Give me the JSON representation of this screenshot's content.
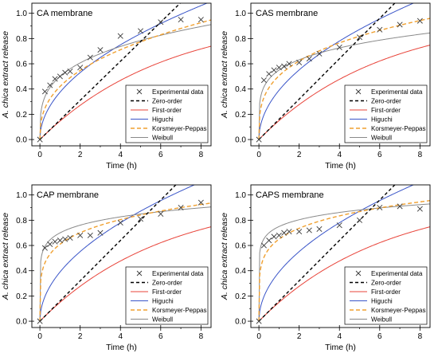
{
  "figure": {
    "shared_xlabel": "Time (h)",
    "shared_ylabel": "A. chica extract release"
  },
  "legend_labels": {
    "experimental": "Experimental data",
    "zero": "Zero-order",
    "first": "First-order",
    "higuchi": "Higuchi",
    "korsmeyer": "Korsmeyer-Peppas",
    "weibull": "Weibull"
  },
  "colors": {
    "experimental": "#3a3a3a",
    "zero": "#000000",
    "first": "#e8443a",
    "higuchi": "#3a55c8",
    "korsmeyer": "#f0a030",
    "weibull": "#8a8a8a"
  },
  "chart_data": [
    {
      "type": "line",
      "title": "CA membrane",
      "xlabel": "Time (h)",
      "ylabel": "A. chica extract release",
      "xlim": [
        -0.4,
        8.5
      ],
      "ylim": [
        -0.05,
        1.08
      ],
      "xticks": [
        0,
        2,
        4,
        6,
        8
      ],
      "yticks": [
        0.0,
        0.2,
        0.4,
        0.6,
        0.8,
        1.0
      ],
      "legend_position": "bottom-right",
      "experimental": {
        "x": [
          0,
          0.25,
          0.5,
          0.75,
          1,
          1.25,
          1.5,
          2,
          2.5,
          3,
          4,
          5,
          6,
          7,
          8
        ],
        "y": [
          0,
          0.38,
          0.43,
          0.48,
          0.5,
          0.53,
          0.54,
          0.57,
          0.65,
          0.71,
          0.82,
          0.86,
          0.93,
          0.95,
          0.95
        ]
      },
      "models": {
        "zero": {
          "k": 0.155
        },
        "first": {
          "k": 0.158
        },
        "higuchi": {
          "k": 0.375
        },
        "korsmeyer": {
          "k": 0.42,
          "n": 0.38
        },
        "weibull": {
          "a": 0.5,
          "b": 0.28
        }
      }
    },
    {
      "type": "line",
      "title": "CAS membrane",
      "xlabel": "Time (h)",
      "ylabel": "A. chica extract release",
      "xlim": [
        -0.4,
        8.5
      ],
      "ylim": [
        -0.05,
        1.08
      ],
      "xticks": [
        0,
        2,
        4,
        6,
        8
      ],
      "yticks": [
        0.0,
        0.2,
        0.4,
        0.6,
        0.8,
        1.0
      ],
      "legend_position": "bottom-right",
      "experimental": {
        "x": [
          0,
          0.25,
          0.5,
          0.75,
          1,
          1.25,
          1.5,
          2,
          2.5,
          3,
          4,
          5,
          6,
          7,
          8
        ],
        "y": [
          0,
          0.47,
          0.52,
          0.55,
          0.57,
          0.58,
          0.6,
          0.61,
          0.64,
          0.68,
          0.73,
          0.81,
          0.87,
          0.91,
          0.94
        ]
      },
      "models": {
        "zero": {
          "k": 0.16
        },
        "first": {
          "k": 0.162
        },
        "higuchi": {
          "k": 0.39
        },
        "korsmeyer": {
          "k": 0.505,
          "n": 0.3
        },
        "weibull": {
          "a": 0.55,
          "b": 0.2
        }
      }
    },
    {
      "type": "line",
      "title": "CAP membrane",
      "xlabel": "Time (h)",
      "ylabel": "A. chica extract release",
      "xlim": [
        -0.4,
        8.5
      ],
      "ylim": [
        -0.05,
        1.08
      ],
      "xticks": [
        0,
        2,
        4,
        6,
        8
      ],
      "yticks": [
        0.0,
        0.2,
        0.4,
        0.6,
        0.8,
        1.0
      ],
      "legend_position": "bottom-right",
      "experimental": {
        "x": [
          0,
          0.25,
          0.5,
          0.75,
          1,
          1.25,
          1.5,
          2,
          2.5,
          3,
          4,
          5,
          6,
          7,
          8
        ],
        "y": [
          0,
          0.58,
          0.61,
          0.63,
          0.64,
          0.65,
          0.66,
          0.68,
          0.68,
          0.7,
          0.78,
          0.81,
          0.85,
          0.9,
          0.94
        ]
      },
      "models": {
        "zero": {
          "k": 0.16
        },
        "first": {
          "k": 0.162
        },
        "higuchi": {
          "k": 0.39
        },
        "korsmeyer": {
          "k": 0.61,
          "n": 0.2
        },
        "weibull": {
          "a": 0.7,
          "b": 0.12
        }
      }
    },
    {
      "type": "line",
      "title": "CAPS membrane",
      "xlabel": "Time (h)",
      "ylabel": "A. chica extract release",
      "xlim": [
        -0.4,
        8.5
      ],
      "ylim": [
        -0.05,
        1.08
      ],
      "xticks": [
        0,
        2,
        4,
        6,
        8
      ],
      "yticks": [
        0.0,
        0.2,
        0.4,
        0.6,
        0.8,
        1.0
      ],
      "legend_position": "bottom-right",
      "experimental": {
        "x": [
          0,
          0.25,
          0.5,
          0.75,
          1,
          1.25,
          1.5,
          2,
          2.5,
          3,
          4,
          5,
          6,
          7,
          8
        ],
        "y": [
          0,
          0.6,
          0.64,
          0.67,
          0.68,
          0.7,
          0.71,
          0.71,
          0.72,
          0.73,
          0.76,
          0.8,
          0.9,
          0.91,
          0.89
        ]
      },
      "models": {
        "zero": {
          "k": 0.16
        },
        "first": {
          "k": 0.162
        },
        "higuchi": {
          "k": 0.39
        },
        "korsmeyer": {
          "k": 0.65,
          "n": 0.18
        },
        "weibull": {
          "a": 0.75,
          "b": 0.1
        }
      }
    }
  ]
}
